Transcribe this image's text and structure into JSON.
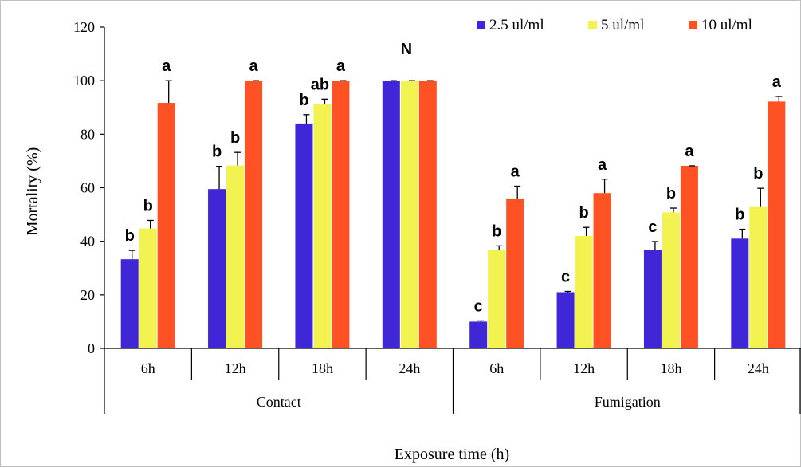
{
  "chart_data": {
    "type": "bar",
    "title": "",
    "ylabel": "Mortality (%)",
    "xlabel": "Exposure time (h)",
    "ylim": [
      0,
      120
    ],
    "yticks": [
      "0",
      "20",
      "40",
      "60",
      "80",
      "100",
      "120"
    ],
    "grid": false,
    "legend_position": "top-right",
    "groups": [
      "Contact",
      "Fumigation"
    ],
    "categories": [
      "6h",
      "12h",
      "18h",
      "24h",
      "6h",
      "12h",
      "18h",
      "24h"
    ],
    "series": [
      {
        "name": "2.5 ul/ml",
        "color": "#3f26d6",
        "values": [
          33.3,
          59.5,
          84,
          100,
          10,
          21,
          36.7,
          41
        ],
        "errors": [
          3.3,
          8.5,
          3.3,
          0,
          0.3,
          0.3,
          3.2,
          3.5
        ],
        "letters": [
          "b",
          "b",
          "b",
          "",
          "c",
          "c",
          "c",
          "b"
        ]
      },
      {
        "name": "5 ul/ml",
        "color": "#f2f250",
        "values": [
          44.8,
          68.3,
          91.3,
          100,
          36.7,
          42,
          50.8,
          52.8
        ],
        "errors": [
          3.0,
          4.9,
          1.8,
          0,
          1.6,
          3.2,
          1.6,
          7.0
        ],
        "letters": [
          "b",
          "b",
          "ab",
          "",
          "b",
          "b",
          "b",
          "b"
        ]
      },
      {
        "name": "10 ul/ml",
        "color": "#ff5224",
        "values": [
          91.7,
          100,
          100,
          100,
          56,
          58,
          68.2,
          92.2
        ],
        "errors": [
          8.3,
          0,
          0,
          0,
          4.6,
          5.2,
          0,
          1.9
        ],
        "letters": [
          "a",
          "a",
          "a",
          "",
          "a",
          "a",
          "a",
          "a"
        ]
      }
    ],
    "annotations": [
      {
        "category_index": 3,
        "text": "N"
      }
    ]
  }
}
